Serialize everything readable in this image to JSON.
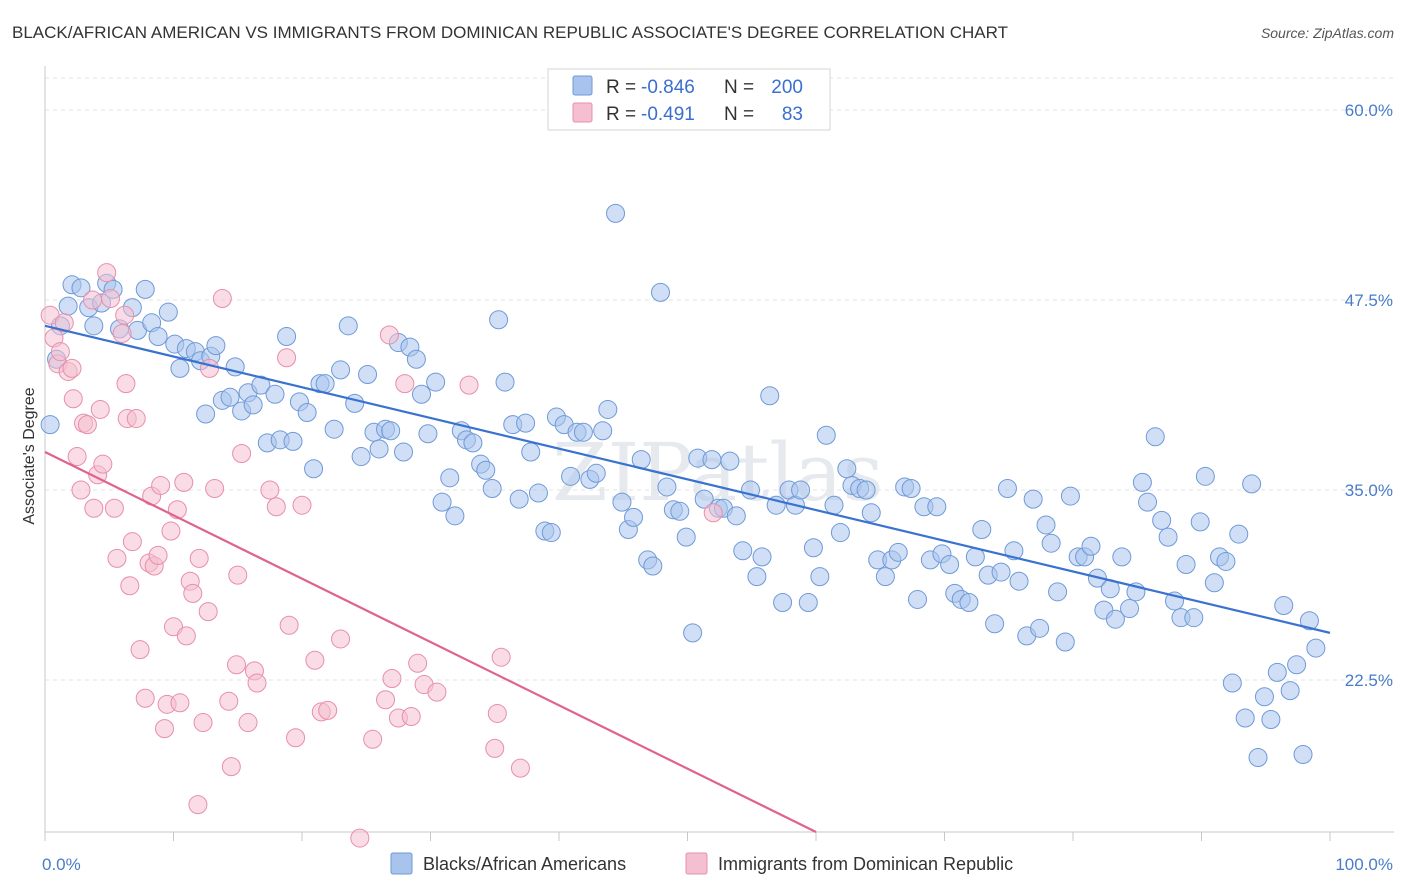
{
  "chart_data": {
    "type": "scatter",
    "title": "BLACK/AFRICAN AMERICAN VS IMMIGRANTS FROM DOMINICAN REPUBLIC ASSOCIATE'S DEGREE CORRELATION CHART",
    "source": "Source: ZipAtlas.com",
    "ylabel": "Associate's Degree",
    "xlabel": "",
    "xlim": [
      0,
      100
    ],
    "ylim": [
      12.5,
      62.5
    ],
    "x_tick_labels": [
      "0.0%",
      "100.0%"
    ],
    "y_ticks": [
      22.5,
      35.0,
      47.5,
      60.0
    ],
    "y_tick_labels": [
      "22.5%",
      "35.0%",
      "47.5%",
      "60.0%"
    ],
    "grid": true,
    "watermark": "ZIPatlas",
    "legend": {
      "position": "top-center",
      "entries": [
        {
          "r_label": "R =",
          "r_value": "-0.846",
          "n_label": "N =",
          "n_value": "200"
        },
        {
          "r_label": "R =",
          "r_value": "-0.491",
          "n_label": "N =",
          "n_value": "83"
        }
      ]
    },
    "series": [
      {
        "name": "Blacks/African Americans",
        "color": "#a9c4ec",
        "edge_color": "#6f9ad8",
        "trend_color": "#3a72d0",
        "trend": {
          "x": [
            0,
            100
          ],
          "y": [
            45.8,
            25.6
          ]
        },
        "points": [
          [
            0.4,
            39.3
          ],
          [
            0.9,
            43.6
          ],
          [
            1.2,
            45.8
          ],
          [
            1.8,
            47.1
          ],
          [
            2.1,
            48.5
          ],
          [
            2.8,
            48.3
          ],
          [
            3.4,
            47.0
          ],
          [
            3.8,
            45.8
          ],
          [
            4.4,
            47.3
          ],
          [
            4.8,
            48.6
          ],
          [
            5.3,
            48.2
          ],
          [
            5.8,
            45.6
          ],
          [
            6.8,
            47.0
          ],
          [
            7.2,
            45.5
          ],
          [
            7.8,
            48.2
          ],
          [
            8.3,
            46.0
          ],
          [
            8.8,
            45.1
          ],
          [
            9.6,
            46.7
          ],
          [
            10.1,
            44.6
          ],
          [
            10.5,
            43.0
          ],
          [
            11.0,
            44.3
          ],
          [
            11.7,
            44.1
          ],
          [
            12.1,
            43.5
          ],
          [
            12.5,
            40.0
          ],
          [
            12.9,
            43.8
          ],
          [
            13.3,
            44.5
          ],
          [
            13.8,
            40.9
          ],
          [
            14.4,
            41.1
          ],
          [
            14.8,
            43.1
          ],
          [
            15.3,
            40.2
          ],
          [
            15.8,
            41.4
          ],
          [
            16.2,
            40.6
          ],
          [
            16.8,
            41.9
          ],
          [
            17.3,
            38.1
          ],
          [
            17.9,
            41.3
          ],
          [
            18.3,
            38.3
          ],
          [
            18.8,
            45.1
          ],
          [
            19.3,
            38.2
          ],
          [
            19.8,
            40.8
          ],
          [
            20.4,
            40.1
          ],
          [
            20.9,
            36.4
          ],
          [
            21.4,
            42.0
          ],
          [
            21.8,
            42.0
          ],
          [
            22.5,
            39.0
          ],
          [
            23.0,
            42.9
          ],
          [
            23.6,
            45.8
          ],
          [
            24.1,
            40.7
          ],
          [
            24.6,
            37.2
          ],
          [
            25.1,
            42.6
          ],
          [
            25.6,
            38.8
          ],
          [
            26.0,
            37.7
          ],
          [
            26.5,
            39.0
          ],
          [
            26.9,
            38.9
          ],
          [
            27.5,
            44.7
          ],
          [
            27.9,
            37.5
          ],
          [
            28.4,
            44.4
          ],
          [
            28.9,
            43.6
          ],
          [
            29.3,
            41.3
          ],
          [
            29.8,
            38.7
          ],
          [
            30.4,
            42.1
          ],
          [
            30.9,
            34.2
          ],
          [
            31.5,
            35.8
          ],
          [
            31.9,
            33.3
          ],
          [
            32.4,
            38.9
          ],
          [
            32.8,
            38.3
          ],
          [
            33.3,
            38.1
          ],
          [
            33.9,
            36.7
          ],
          [
            34.3,
            36.3
          ],
          [
            34.8,
            35.1
          ],
          [
            35.3,
            46.2
          ],
          [
            35.8,
            42.1
          ],
          [
            36.4,
            39.3
          ],
          [
            36.9,
            34.4
          ],
          [
            37.4,
            39.4
          ],
          [
            37.8,
            37.5
          ],
          [
            38.4,
            34.8
          ],
          [
            38.9,
            32.3
          ],
          [
            39.4,
            32.2
          ],
          [
            39.8,
            39.8
          ],
          [
            40.4,
            39.3
          ],
          [
            40.9,
            35.9
          ],
          [
            41.4,
            38.8
          ],
          [
            41.9,
            38.8
          ],
          [
            42.4,
            35.7
          ],
          [
            42.9,
            36.1
          ],
          [
            43.4,
            38.9
          ],
          [
            43.8,
            40.3
          ],
          [
            44.4,
            53.2
          ],
          [
            44.9,
            34.2
          ],
          [
            45.4,
            32.4
          ],
          [
            45.8,
            33.2
          ],
          [
            46.4,
            37.0
          ],
          [
            46.9,
            30.4
          ],
          [
            47.3,
            30.0
          ],
          [
            47.9,
            48.0
          ],
          [
            48.4,
            35.2
          ],
          [
            48.9,
            33.7
          ],
          [
            49.4,
            33.6
          ],
          [
            49.9,
            31.9
          ],
          [
            50.4,
            25.6
          ],
          [
            50.8,
            37.1
          ],
          [
            51.3,
            34.4
          ],
          [
            51.9,
            37.0
          ],
          [
            52.4,
            33.8
          ],
          [
            52.8,
            33.8
          ],
          [
            53.3,
            36.9
          ],
          [
            53.8,
            33.3
          ],
          [
            54.3,
            31.0
          ],
          [
            54.9,
            35.0
          ],
          [
            55.4,
            29.3
          ],
          [
            55.8,
            30.6
          ],
          [
            56.4,
            41.2
          ],
          [
            56.9,
            34.0
          ],
          [
            57.4,
            27.6
          ],
          [
            57.9,
            35.0
          ],
          [
            58.4,
            34.0
          ],
          [
            58.8,
            35.0
          ],
          [
            59.4,
            27.6
          ],
          [
            59.8,
            31.2
          ],
          [
            60.3,
            29.3
          ],
          [
            60.8,
            38.6
          ],
          [
            61.4,
            34.0
          ],
          [
            61.9,
            32.2
          ],
          [
            62.4,
            36.4
          ],
          [
            62.8,
            35.3
          ],
          [
            63.4,
            35.1
          ],
          [
            63.9,
            35.0
          ],
          [
            64.3,
            33.5
          ],
          [
            64.8,
            30.4
          ],
          [
            65.4,
            29.3
          ],
          [
            65.9,
            30.4
          ],
          [
            66.4,
            30.9
          ],
          [
            66.9,
            35.2
          ],
          [
            67.4,
            35.1
          ],
          [
            67.9,
            27.8
          ],
          [
            68.4,
            33.9
          ],
          [
            68.9,
            30.4
          ],
          [
            69.4,
            33.9
          ],
          [
            69.8,
            30.8
          ],
          [
            70.4,
            30.1
          ],
          [
            70.8,
            28.2
          ],
          [
            71.3,
            27.8
          ],
          [
            71.9,
            27.6
          ],
          [
            72.4,
            30.6
          ],
          [
            72.9,
            32.4
          ],
          [
            73.4,
            29.4
          ],
          [
            73.9,
            26.2
          ],
          [
            74.4,
            29.6
          ],
          [
            74.9,
            35.1
          ],
          [
            75.4,
            31.0
          ],
          [
            75.8,
            29.0
          ],
          [
            76.4,
            25.4
          ],
          [
            76.9,
            34.4
          ],
          [
            77.4,
            25.9
          ],
          [
            77.9,
            32.7
          ],
          [
            78.3,
            31.5
          ],
          [
            78.8,
            28.3
          ],
          [
            79.4,
            25.0
          ],
          [
            79.8,
            34.6
          ],
          [
            80.4,
            30.6
          ],
          [
            80.9,
            30.6
          ],
          [
            81.4,
            31.3
          ],
          [
            81.9,
            29.2
          ],
          [
            82.4,
            27.1
          ],
          [
            82.9,
            28.5
          ],
          [
            83.3,
            26.5
          ],
          [
            83.8,
            30.6
          ],
          [
            84.4,
            27.2
          ],
          [
            84.9,
            28.3
          ],
          [
            85.4,
            35.5
          ],
          [
            85.8,
            34.2
          ],
          [
            86.4,
            38.5
          ],
          [
            86.9,
            33.0
          ],
          [
            87.4,
            31.9
          ],
          [
            87.9,
            27.7
          ],
          [
            88.4,
            26.6
          ],
          [
            88.8,
            30.1
          ],
          [
            89.4,
            26.6
          ],
          [
            89.9,
            32.9
          ],
          [
            90.3,
            35.9
          ],
          [
            91.0,
            28.9
          ],
          [
            91.4,
            30.6
          ],
          [
            91.9,
            30.3
          ],
          [
            92.4,
            22.3
          ],
          [
            92.9,
            32.1
          ],
          [
            93.4,
            20.0
          ],
          [
            93.9,
            35.4
          ],
          [
            94.4,
            17.4
          ],
          [
            94.9,
            21.4
          ],
          [
            95.4,
            19.9
          ],
          [
            95.9,
            23.0
          ],
          [
            96.4,
            27.4
          ],
          [
            96.9,
            21.8
          ],
          [
            97.4,
            23.5
          ],
          [
            97.9,
            17.6
          ],
          [
            98.4,
            26.4
          ],
          [
            98.9,
            24.6
          ]
        ]
      },
      {
        "name": "Immigrants from Dominican Republic",
        "color": "#f4bfd0",
        "edge_color": "#e88fab",
        "trend_color": "#e0638e",
        "trend": {
          "x": [
            0,
            60
          ],
          "y": [
            37.5,
            12.5
          ]
        },
        "points": [
          [
            0.4,
            46.5
          ],
          [
            0.7,
            45.0
          ],
          [
            1.0,
            43.3
          ],
          [
            1.2,
            44.1
          ],
          [
            1.5,
            46.0
          ],
          [
            1.8,
            42.8
          ],
          [
            2.1,
            43.0
          ],
          [
            2.2,
            41.0
          ],
          [
            2.5,
            37.2
          ],
          [
            2.8,
            35.0
          ],
          [
            3.0,
            39.4
          ],
          [
            3.3,
            39.3
          ],
          [
            3.7,
            47.5
          ],
          [
            3.8,
            33.8
          ],
          [
            4.1,
            36.0
          ],
          [
            4.3,
            40.3
          ],
          [
            4.5,
            36.7
          ],
          [
            4.8,
            49.3
          ],
          [
            5.1,
            47.6
          ],
          [
            5.4,
            33.8
          ],
          [
            5.6,
            30.5
          ],
          [
            6.0,
            45.3
          ],
          [
            6.2,
            46.5
          ],
          [
            6.3,
            42.0
          ],
          [
            6.4,
            39.7
          ],
          [
            6.6,
            28.7
          ],
          [
            6.8,
            31.6
          ],
          [
            7.1,
            39.7
          ],
          [
            7.4,
            24.5
          ],
          [
            7.8,
            21.3
          ],
          [
            8.1,
            30.2
          ],
          [
            8.3,
            34.6
          ],
          [
            8.5,
            30.0
          ],
          [
            8.8,
            30.7
          ],
          [
            9.0,
            35.3
          ],
          [
            9.3,
            19.3
          ],
          [
            9.5,
            20.9
          ],
          [
            9.8,
            32.3
          ],
          [
            10.0,
            26.0
          ],
          [
            10.3,
            33.7
          ],
          [
            10.5,
            21.0
          ],
          [
            10.8,
            35.5
          ],
          [
            11.0,
            25.4
          ],
          [
            11.3,
            29.0
          ],
          [
            11.5,
            28.2
          ],
          [
            11.9,
            14.3
          ],
          [
            12.0,
            30.5
          ],
          [
            12.3,
            19.7
          ],
          [
            12.7,
            27.0
          ],
          [
            12.8,
            43.0
          ],
          [
            13.2,
            35.1
          ],
          [
            13.8,
            47.6
          ],
          [
            14.3,
            21.1
          ],
          [
            14.5,
            16.8
          ],
          [
            14.9,
            23.5
          ],
          [
            15.0,
            29.4
          ],
          [
            15.3,
            37.4
          ],
          [
            15.8,
            19.7
          ],
          [
            16.3,
            23.1
          ],
          [
            16.5,
            22.3
          ],
          [
            17.5,
            35.0
          ],
          [
            18.0,
            33.9
          ],
          [
            18.8,
            43.7
          ],
          [
            19.0,
            26.1
          ],
          [
            19.5,
            18.7
          ],
          [
            20.0,
            34.0
          ],
          [
            21.0,
            23.8
          ],
          [
            21.5,
            20.4
          ],
          [
            22.0,
            20.5
          ],
          [
            23.0,
            25.2
          ],
          [
            24.5,
            12.1
          ],
          [
            25.5,
            18.6
          ],
          [
            26.5,
            21.2
          ],
          [
            26.8,
            45.2
          ],
          [
            27.0,
            22.6
          ],
          [
            27.5,
            20.0
          ],
          [
            28.0,
            42.0
          ],
          [
            28.5,
            20.1
          ],
          [
            29.0,
            23.6
          ],
          [
            29.5,
            22.2
          ],
          [
            30.5,
            21.7
          ],
          [
            33.0,
            41.9
          ],
          [
            35.0,
            18.0
          ],
          [
            35.2,
            20.3
          ],
          [
            35.5,
            24.0
          ],
          [
            37.0,
            16.7
          ],
          [
            52.0,
            33.5
          ]
        ]
      }
    ]
  }
}
